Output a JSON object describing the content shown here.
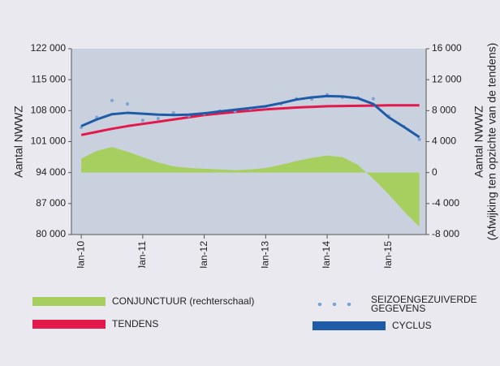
{
  "chart_data": {
    "type": "line",
    "x": [
      2010,
      2010.25,
      2010.5,
      2010.75,
      2011,
      2011.25,
      2011.5,
      2011.75,
      2012,
      2012.25,
      2012.5,
      2012.75,
      2013,
      2013.25,
      2013.5,
      2013.75,
      2014,
      2014.25,
      2014.5,
      2014.75,
      2015,
      2015.25,
      2015.5
    ],
    "xlim": [
      2009.84,
      2015.61
    ],
    "xticks": [
      {
        "value": 2010,
        "label": "Jan-10"
      },
      {
        "value": 2011,
        "label": "Jan-11"
      },
      {
        "value": 2012,
        "label": "Jan-12"
      },
      {
        "value": 2013,
        "label": "Jan-13"
      },
      {
        "value": 2014,
        "label": "Jan-14"
      },
      {
        "value": 2015,
        "label": "Jan-15"
      }
    ],
    "ylim": [
      80000,
      122000
    ],
    "yticks": [
      {
        "value": 80000,
        "label": "80 000"
      },
      {
        "value": 87000,
        "label": "87 000"
      },
      {
        "value": 94000,
        "label": "94 000"
      },
      {
        "value": 101000,
        "label": "101 000"
      },
      {
        "value": 108000,
        "label": "108 000"
      },
      {
        "value": 115000,
        "label": "115 000"
      },
      {
        "value": 122000,
        "label": "122 000"
      }
    ],
    "y2lim": [
      -8000,
      16000
    ],
    "y2ticks": [
      {
        "value": -8000,
        "label": "-8 000"
      },
      {
        "value": -4000,
        "label": "-4 000"
      },
      0,
      {
        "value": 4000,
        "label": "4 000"
      },
      {
        "value": 8000,
        "label": "8 000"
      },
      {
        "value": 12000,
        "label": "12 000"
      },
      {
        "value": 16000,
        "label": "16 000"
      }
    ],
    "ylabel": "Aantal NWWZ",
    "y2label": [
      "Aantal NWWZ",
      "(Afwijking ten opzichte van de tendens)"
    ],
    "series": [
      {
        "name": "CONJUNCTUUR (rechterschaal)",
        "color": "#a6cf5f",
        "kind": "area",
        "axis": "y2",
        "values": [
          1800,
          2800,
          3300,
          2700,
          2000,
          1300,
          800,
          600,
          500,
          400,
          300,
          400,
          600,
          1000,
          1500,
          1900,
          2200,
          2000,
          1000,
          -800,
          -2800,
          -5000,
          -7000
        ]
      },
      {
        "name": "TENDENS",
        "color": "#e4194b",
        "kind": "line",
        "values": [
          102500,
          103200,
          103900,
          104500,
          105000,
          105500,
          106000,
          106500,
          107000,
          107350,
          107700,
          108000,
          108300,
          108500,
          108700,
          108850,
          109000,
          109050,
          109100,
          109150,
          109200,
          109200,
          109200
        ]
      },
      {
        "name": "SEIZOENGEZUIVERDE GEGEVENS",
        "color": "#7ba3d6",
        "kind": "dots",
        "values": [
          104200,
          106500,
          110300,
          109500,
          105800,
          106200,
          107500,
          106800,
          107300,
          107900,
          107900,
          108400,
          108800,
          109500,
          110700,
          110600,
          111600,
          111000,
          110900,
          110700,
          106800,
          104400,
          101500
        ]
      },
      {
        "name": "CYCLUS",
        "color": "#1f5ba6",
        "kind": "line",
        "values": [
          104500,
          106000,
          107200,
          107500,
          107300,
          107100,
          107000,
          107100,
          107400,
          107800,
          108200,
          108600,
          109000,
          109700,
          110500,
          111000,
          111300,
          111200,
          110800,
          109500,
          106500,
          104300,
          102000
        ]
      }
    ]
  }
}
